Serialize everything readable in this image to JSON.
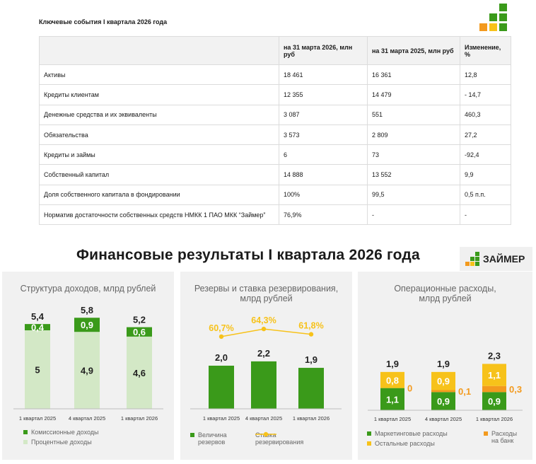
{
  "doc_title": "Ключевые события I квартала 2026 года",
  "table": {
    "headers": [
      "",
      "на 31 марта 2026, млн руб",
      "на 31 марта 2025, млн руб",
      "Изменение, %"
    ],
    "rows": [
      [
        "Активы",
        "18 461",
        "16 361",
        "12,8"
      ],
      [
        "Кредиты клиентам",
        "12 355",
        "14 479",
        "- 14,7"
      ],
      [
        "Денежные средства и их эквиваленты",
        "3 087",
        "551",
        "460,3"
      ],
      [
        "Обязательства",
        "3 573",
        "2 809",
        "27,2"
      ],
      [
        "Кредиты и займы",
        "6",
        "73",
        "-92,4"
      ],
      [
        "Собственный капитал",
        "14 888",
        "13 552",
        "9,9"
      ],
      [
        "Доля собственного капитала в фондировании",
        "100%",
        "99,5",
        "0,5 п.п."
      ],
      [
        "Норматив достаточности собственных средств НМКК 1 ПАО МКК “Займер”",
        "76,9%",
        "-",
        "-"
      ]
    ]
  },
  "section_title": "Финансовые результаты I квартала 2026 года",
  "brand_name": "ЗАЙМЕР",
  "colors": {
    "green": "#3a9a1a",
    "light_green": "#d3e8c6",
    "yellow": "#f7c21a",
    "orange": "#f39a1e",
    "title_gray": "#666666"
  },
  "chart_data": [
    {
      "type": "bar",
      "title": "Структура доходов, млрд рублей",
      "categories": [
        "1 квартал 2025",
        "4 квартал 2025",
        "1 квартал 2026"
      ],
      "totals": [
        "5,4",
        "5,8",
        "5,2"
      ],
      "series": [
        {
          "name": "Комиссионные доходы",
          "values": [
            0.4,
            0.9,
            0.6
          ],
          "labels": [
            "0,4",
            "0,9",
            "0,6"
          ],
          "color": "#3a9a1a"
        },
        {
          "name": "Процентные доходы",
          "values": [
            5,
            4.9,
            4.6
          ],
          "labels": [
            "5",
            "4,9",
            "4,6"
          ],
          "color": "#d3e8c6"
        }
      ],
      "ylim": [
        0,
        6.0
      ]
    },
    {
      "type": "bar",
      "title": "Резервы и ставка резервирования, млрд рублей",
      "categories": [
        "1 квартал 2025",
        "4 квартал 2025",
        "1 квартал 2026"
      ],
      "series": [
        {
          "name": "Величина резервов",
          "values": [
            2.0,
            2.2,
            1.9
          ],
          "labels": [
            "2,0",
            "2,2",
            "1,9"
          ],
          "color": "#3a9a1a"
        },
        {
          "name": "Ставка резервирования",
          "values": [
            60.7,
            64.3,
            61.8
          ],
          "labels": [
            "60,7%",
            "64,3%",
            "61,8%"
          ],
          "color": "#f7c21a"
        }
      ],
      "ylim": [
        0,
        2.5
      ]
    },
    {
      "type": "bar",
      "title": "Операционные расходы, млрд рублей",
      "categories": [
        "1 квартал 2025",
        "4 квартал 2025",
        "1 квартал 2026"
      ],
      "totals": [
        "1,9",
        "1,9",
        "2,3"
      ],
      "series": [
        {
          "name": "Маркетинговые расходы",
          "values": [
            1.1,
            0.9,
            0.9
          ],
          "labels": [
            "1,1",
            "0,9",
            "0,9"
          ],
          "color": "#3a9a1a"
        },
        {
          "name": "Расходы на банк",
          "values": [
            0,
            0.1,
            0.3
          ],
          "labels": [
            "0",
            "0,1",
            "0,3"
          ],
          "color": "#f39a1e"
        },
        {
          "name": "Остальные расходы",
          "values": [
            0.8,
            0.9,
            1.1
          ],
          "labels": [
            "0,8",
            "0,9",
            "1,1"
          ],
          "color": "#f7c21a"
        }
      ],
      "ylim": [
        0,
        2.5
      ]
    }
  ]
}
